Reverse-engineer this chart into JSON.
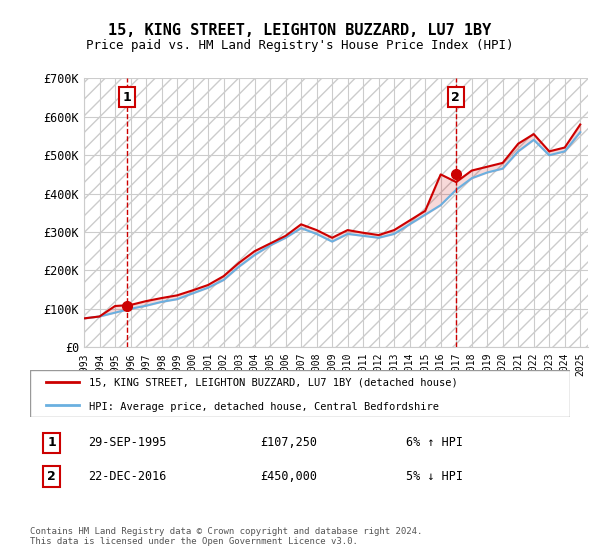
{
  "title": "15, KING STREET, LEIGHTON BUZZARD, LU7 1BY",
  "subtitle": "Price paid vs. HM Land Registry's House Price Index (HPI)",
  "legend_entry1": "15, KING STREET, LEIGHTON BUZZARD, LU7 1BY (detached house)",
  "legend_entry2": "HPI: Average price, detached house, Central Bedfordshire",
  "annotation1_label": "1",
  "annotation1_date": "29-SEP-1995",
  "annotation1_price": "£107,250",
  "annotation1_hpi": "6% ↑ HPI",
  "annotation2_label": "2",
  "annotation2_date": "22-DEC-2016",
  "annotation2_price": "£450,000",
  "annotation2_hpi": "5% ↓ HPI",
  "footer": "Contains HM Land Registry data © Crown copyright and database right 2024.\nThis data is licensed under the Open Government Licence v3.0.",
  "hpi_color": "#6ab0e0",
  "price_color": "#cc0000",
  "marker_color": "#cc0000",
  "vline_color": "#cc0000",
  "annotation_box_color": "#cc0000",
  "background_hatch_color": "#e0e0e0",
  "ylim": [
    0,
    700000
  ],
  "yticks": [
    0,
    100000,
    200000,
    300000,
    400000,
    500000,
    600000,
    700000
  ],
  "ytick_labels": [
    "£0",
    "£100K",
    "£200K",
    "£300K",
    "£400K",
    "£500K",
    "£600K",
    "£700K"
  ],
  "sale1_year": 1995.75,
  "sale1_price": 107250,
  "sale2_year": 2016.97,
  "sale2_price": 450000,
  "hpi_years": [
    1993,
    1994,
    1995,
    1996,
    1997,
    1998,
    1999,
    2000,
    2001,
    2002,
    2003,
    2004,
    2005,
    2006,
    2007,
    2008,
    2009,
    2010,
    2011,
    2012,
    2013,
    2014,
    2015,
    2016,
    2017,
    2018,
    2019,
    2020,
    2021,
    2022,
    2023,
    2024,
    2025
  ],
  "hpi_values": [
    75000,
    80000,
    90000,
    100000,
    108000,
    118000,
    125000,
    140000,
    155000,
    175000,
    210000,
    240000,
    265000,
    285000,
    310000,
    295000,
    275000,
    295000,
    290000,
    285000,
    295000,
    320000,
    345000,
    370000,
    410000,
    440000,
    455000,
    465000,
    510000,
    540000,
    500000,
    510000,
    560000
  ],
  "price_years": [
    1993,
    1994,
    1995,
    1996,
    1997,
    1998,
    1999,
    2000,
    2001,
    2002,
    2003,
    2004,
    2005,
    2006,
    2007,
    2008,
    2009,
    2010,
    2011,
    2012,
    2013,
    2014,
    2015,
    2016,
    2017,
    2018,
    2019,
    2020,
    2021,
    2022,
    2023,
    2024,
    2025
  ],
  "price_values": [
    75000,
    80000,
    107250,
    110000,
    120000,
    128000,
    135000,
    148000,
    162000,
    185000,
    220000,
    250000,
    270000,
    290000,
    320000,
    305000,
    285000,
    305000,
    298000,
    292000,
    305000,
    330000,
    355000,
    450000,
    430000,
    460000,
    470000,
    480000,
    530000,
    555000,
    510000,
    520000,
    580000
  ],
  "xlim_start": 1993,
  "xlim_end": 2025.5
}
